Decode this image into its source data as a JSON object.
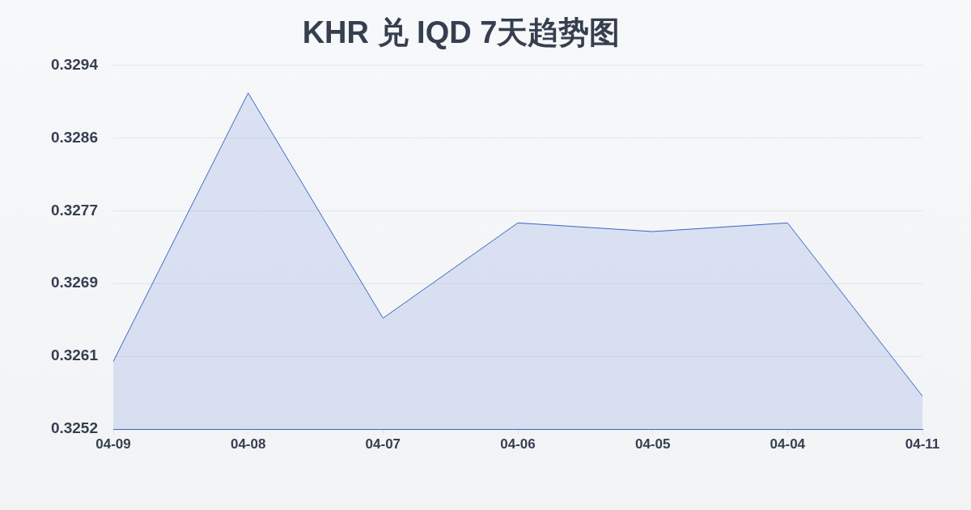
{
  "chart_data": {
    "type": "area",
    "title": "KHR 兑 IQD 7天趋势图",
    "categories": [
      "04-09",
      "04-08",
      "04-07",
      "04-06",
      "04-05",
      "04-04",
      "04-11"
    ],
    "series": [
      {
        "color": "#3a66c8",
        "values": [
          0.326,
          0.3291,
          0.3265,
          0.3276,
          0.3275,
          0.3276,
          0.3256
        ]
      }
    ],
    "ylim": [
      0.32522,
      0.32942
    ],
    "yticks": [
      {
        "value": 0.32522,
        "label": "0.3252"
      },
      {
        "value": 0.32606,
        "label": "0.3261"
      },
      {
        "value": 0.3269,
        "label": "0.3269"
      },
      {
        "value": 0.32774,
        "label": "0.3277"
      },
      {
        "value": 0.32858,
        "label": "0.3286"
      },
      {
        "value": 0.32942,
        "label": "0.3294"
      }
    ],
    "grid": "y",
    "marker": "none"
  }
}
